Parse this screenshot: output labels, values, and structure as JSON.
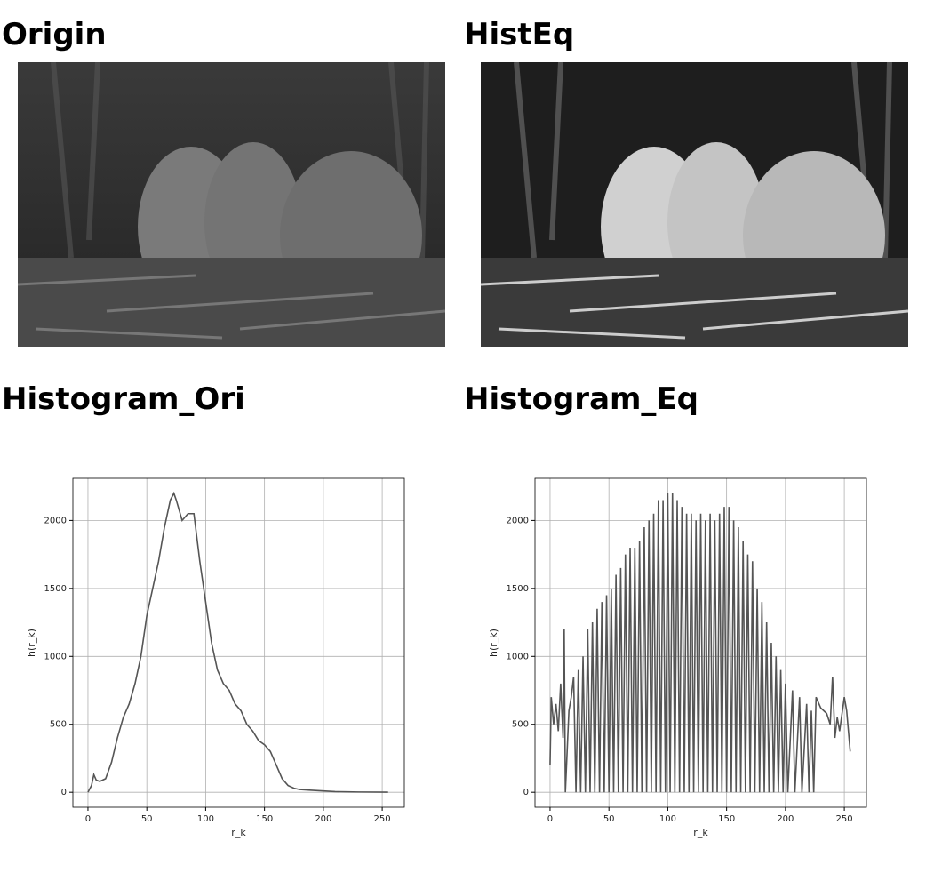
{
  "images": [
    {
      "title": "Origin"
    },
    {
      "title": "HistEq"
    }
  ],
  "chart_data": [
    {
      "type": "line",
      "title": "Histogram_Ori",
      "xlabel": "r_k",
      "ylabel": "h(r_k)",
      "x": [
        0,
        3,
        5,
        7,
        10,
        15,
        20,
        25,
        30,
        35,
        40,
        45,
        50,
        55,
        60,
        65,
        70,
        73,
        75,
        80,
        85,
        90,
        95,
        100,
        105,
        110,
        115,
        120,
        125,
        130,
        135,
        140,
        145,
        150,
        155,
        160,
        165,
        170,
        175,
        180,
        190,
        200,
        210,
        220,
        230,
        255
      ],
      "series": [
        {
          "name": "h(r_k)",
          "color": "#555555",
          "values": [
            0,
            50,
            130,
            90,
            80,
            100,
            220,
            400,
            550,
            650,
            800,
            1000,
            1300,
            1500,
            1700,
            1950,
            2150,
            2200,
            2150,
            2000,
            2050,
            2050,
            1700,
            1400,
            1100,
            900,
            800,
            750,
            650,
            600,
            500,
            450,
            380,
            350,
            300,
            200,
            100,
            50,
            30,
            20,
            15,
            10,
            5,
            3,
            2,
            1
          ]
        }
      ],
      "xlim": [
        -12.8,
        268.8
      ],
      "ylim": [
        -110,
        2310
      ],
      "xticks": [
        0,
        50,
        100,
        150,
        200,
        250
      ],
      "yticks": [
        0,
        500,
        1000,
        1500,
        2000
      ],
      "grid": true
    },
    {
      "type": "line",
      "title": "Histogram_Eq",
      "xlabel": "r_k",
      "ylabel": "h(r_k)",
      "x": [
        0,
        1,
        3,
        5,
        7,
        9,
        11,
        12,
        13,
        16,
        18,
        20,
        22,
        24,
        26,
        28,
        30,
        32,
        34,
        36,
        38,
        40,
        42,
        44,
        46,
        48,
        50,
        52,
        54,
        56,
        58,
        60,
        62,
        64,
        66,
        68,
        70,
        72,
        74,
        76,
        78,
        80,
        82,
        84,
        86,
        88,
        90,
        92,
        94,
        96,
        98,
        100,
        102,
        104,
        106,
        108,
        110,
        112,
        114,
        116,
        118,
        120,
        122,
        124,
        126,
        128,
        130,
        132,
        134,
        136,
        138,
        140,
        142,
        144,
        146,
        148,
        150,
        152,
        154,
        156,
        158,
        160,
        162,
        164,
        166,
        168,
        170,
        172,
        174,
        176,
        178,
        180,
        182,
        184,
        186,
        188,
        190,
        192,
        194,
        196,
        198,
        200,
        202,
        206,
        208,
        212,
        214,
        218,
        220,
        222,
        224,
        226,
        230,
        235,
        238,
        240,
        242,
        244,
        246,
        250,
        252,
        255
      ],
      "series": [
        {
          "name": "h(r_k)",
          "color": "#555555",
          "values": [
            200,
            700,
            500,
            650,
            450,
            800,
            400,
            1200,
            0,
            600,
            700,
            850,
            0,
            900,
            0,
            1000,
            0,
            1200,
            0,
            1250,
            0,
            1350,
            0,
            1400,
            0,
            1450,
            0,
            1500,
            0,
            1600,
            0,
            1650,
            0,
            1750,
            0,
            1800,
            0,
            1800,
            0,
            1850,
            0,
            1950,
            0,
            2000,
            0,
            2050,
            0,
            2150,
            0,
            2150,
            0,
            2200,
            0,
            2200,
            0,
            2150,
            0,
            2100,
            0,
            2050,
            0,
            2050,
            0,
            2000,
            0,
            2050,
            0,
            2000,
            0,
            2050,
            0,
            2000,
            0,
            2050,
            0,
            2100,
            0,
            2100,
            0,
            2000,
            0,
            1950,
            0,
            1850,
            0,
            1750,
            0,
            1700,
            0,
            1500,
            0,
            1400,
            0,
            1250,
            0,
            1100,
            0,
            1000,
            0,
            900,
            0,
            800,
            0,
            750,
            0,
            700,
            0,
            650,
            0,
            600,
            0,
            700,
            620,
            580,
            500,
            850,
            400,
            550,
            450,
            700,
            600,
            300
          ]
        }
      ],
      "xlim": [
        -12.8,
        268.8
      ],
      "ylim": [
        -110,
        2310
      ],
      "xticks": [
        0,
        50,
        100,
        150,
        200,
        250
      ],
      "yticks": [
        0,
        500,
        1000,
        1500,
        2000
      ],
      "grid": true
    }
  ]
}
